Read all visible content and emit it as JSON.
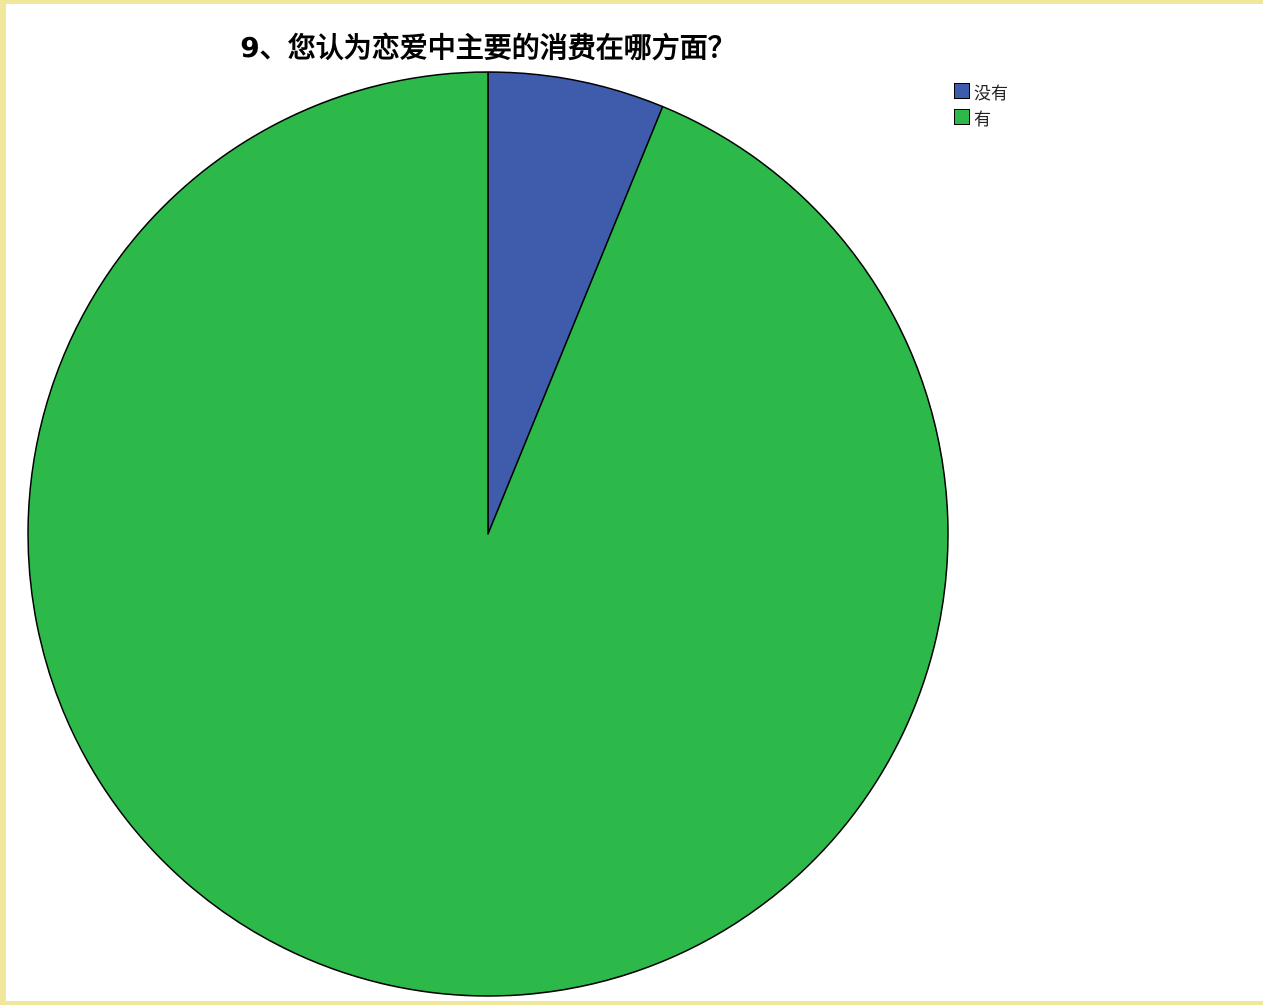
{
  "chart_data": {
    "type": "pie",
    "title": "9、您认为恋爱中主要的消费在哪方面？",
    "categories": [
      "没有",
      "有"
    ],
    "values": [
      6.2,
      93.8
    ],
    "colors": [
      "#3f5bab",
      "#2db84a"
    ],
    "legend_position": "top-right",
    "start_angle": "12 o'clock, clockwise"
  }
}
